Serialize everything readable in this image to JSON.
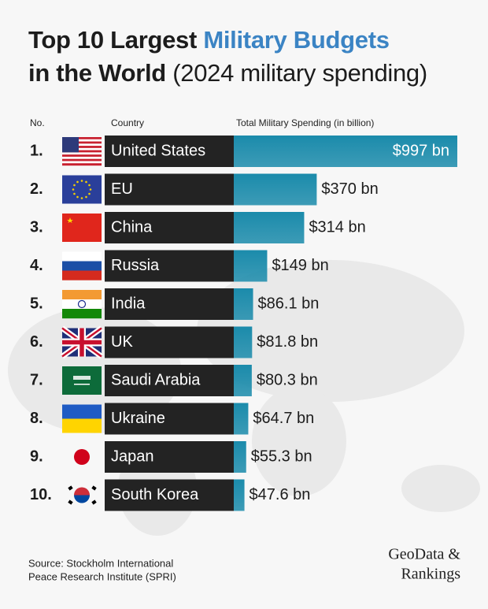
{
  "chart_data": {
    "type": "bar",
    "title": {
      "line1": [
        "Top 10 Largest",
        "Military Budgets"
      ],
      "line2": [
        "in the World",
        "(2024 military spending)"
      ]
    },
    "title_color": "#1c1c1c",
    "title_highlight_color": "#3b84c4",
    "column_headers": [
      "No.",
      "Country",
      "Total Military Spending (in billion)"
    ],
    "ranks": [
      "1.",
      "2.",
      "3.",
      "4.",
      "5.",
      "6.",
      "7.",
      "8.",
      "9.",
      "10."
    ],
    "categories": [
      "United States",
      "EU",
      "China",
      "Russia",
      "India",
      "UK",
      "Saudi Arabia",
      "Ukraine",
      "Japan",
      "South Korea"
    ],
    "values": [
      997,
      370,
      314,
      149,
      86.1,
      81.8,
      80.3,
      64.7,
      55.3,
      47.6
    ],
    "value_labels": [
      "$997 bn",
      "$370 bn",
      "$314 bn",
      "$149 bn",
      "$86.1 bn",
      "$81.8 bn",
      "$80.3 bn",
      "$64.7 bn",
      "$55.3 bn",
      "$47.6 bn"
    ],
    "color": "#1b8bab",
    "label_background": "#232323",
    "source": [
      "Source: Stockholm International",
      "Peace Research Institute (SPRI)"
    ],
    "brand": [
      "GeoData &",
      "Rankings"
    ]
  }
}
